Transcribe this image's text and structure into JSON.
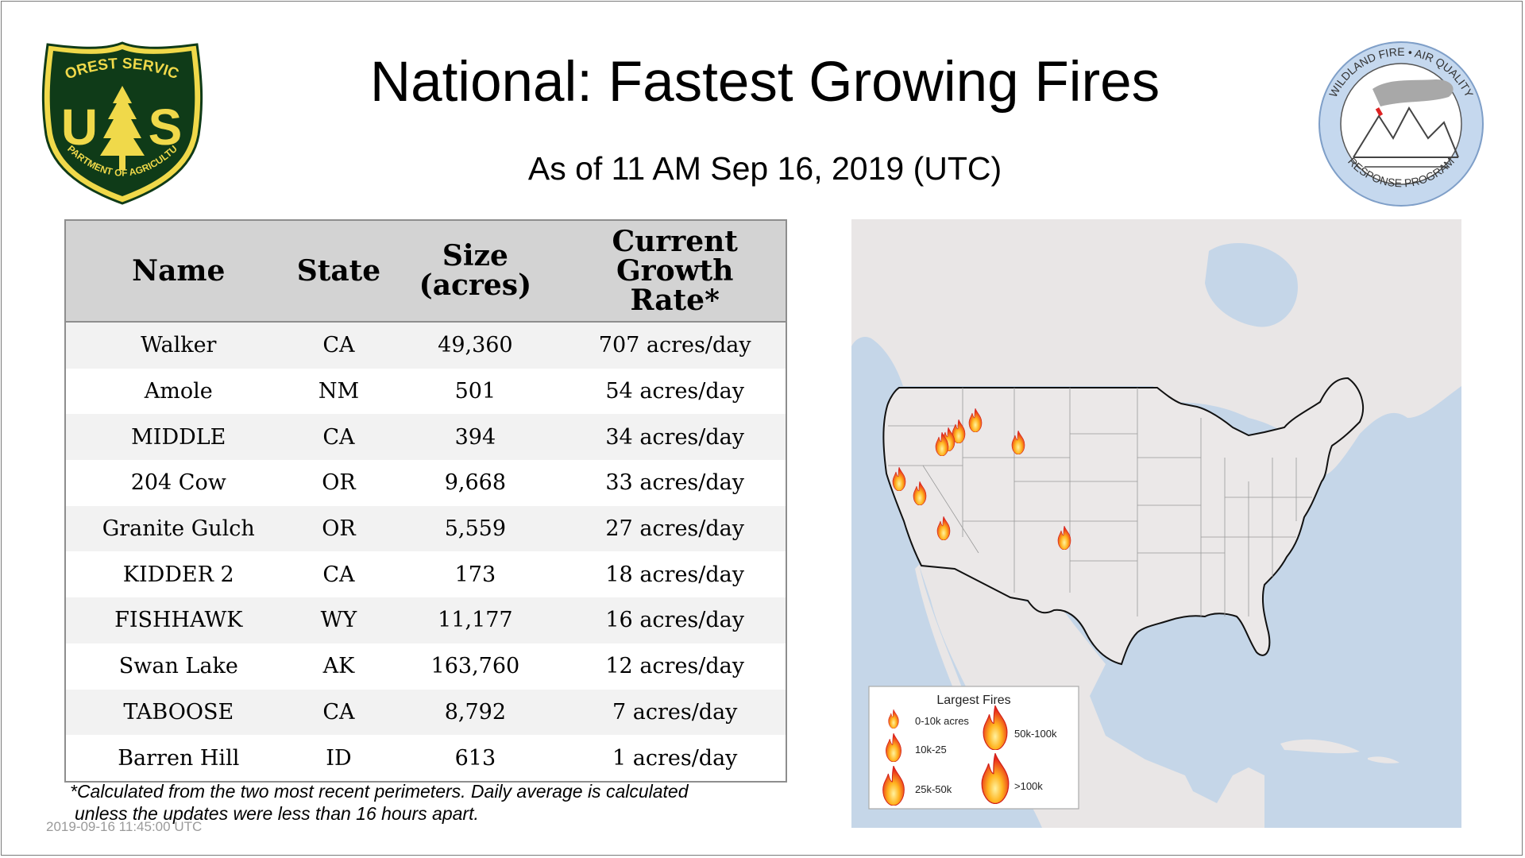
{
  "header": {
    "title": "National: Fastest Growing Fires",
    "subtitle": "As of 11 AM Sep 16, 2019 (UTC)"
  },
  "logos": {
    "usfs": {
      "top": "FOREST SERVICE",
      "mark": "U S",
      "bottom": "DEPARTMENT OF AGRICULTURE"
    },
    "wfaq": {
      "top": "WILDLAND FIRE • AIR QUALITY",
      "bottom": "RESPONSE PROGRAM"
    }
  },
  "table": {
    "headers": {
      "name": "Name",
      "state": "State",
      "size_line1": "Size",
      "size_line2": "(acres)",
      "rate_line1": "Current",
      "rate_line2": "Growth",
      "rate_line3": "Rate*"
    },
    "rows": [
      {
        "name": "Walker",
        "state": "CA",
        "size": "49,360",
        "rate": "707 acres/day"
      },
      {
        "name": "Amole",
        "state": "NM",
        "size": "501",
        "rate": "54 acres/day"
      },
      {
        "name": "MIDDLE",
        "state": "CA",
        "size": "394",
        "rate": "34 acres/day"
      },
      {
        "name": "204 Cow",
        "state": "OR",
        "size": "9,668",
        "rate": "33 acres/day"
      },
      {
        "name": "Granite Gulch",
        "state": "OR",
        "size": "5,559",
        "rate": "27 acres/day"
      },
      {
        "name": "KIDDER 2",
        "state": "CA",
        "size": "173",
        "rate": "18 acres/day"
      },
      {
        "name": "FISHHAWK",
        "state": "WY",
        "size": "11,177",
        "rate": "16 acres/day"
      },
      {
        "name": "Swan Lake",
        "state": "AK",
        "size": "163,760",
        "rate": "12 acres/day"
      },
      {
        "name": "TABOOSE",
        "state": "CA",
        "size": "8,792",
        "rate": "7 acres/day"
      },
      {
        "name": "Barren Hill",
        "state": "ID",
        "size": "613",
        "rate": "1 acres/day"
      }
    ]
  },
  "footnote": {
    "line1": "*Calculated from the two most recent perimeters. Daily average is calculated",
    "line2": "unless the updates were less than 16 hours apart."
  },
  "timestamp": "2019-09-16 11:45:00 UTC",
  "legend": {
    "title": "Largest Fires",
    "items": [
      "0-10k acres",
      "10k-25",
      "25k-50k",
      "50k-100k",
      ">100k"
    ]
  },
  "colors": {
    "usfs_green": "#0f3b18",
    "usfs_gold": "#f0d94a",
    "water": "#c5d6e8",
    "land": "#e9e6e6",
    "us_land": "#ebe8e8",
    "fire_outer": "#e8261a",
    "fire_inner": "#ffd53a"
  }
}
